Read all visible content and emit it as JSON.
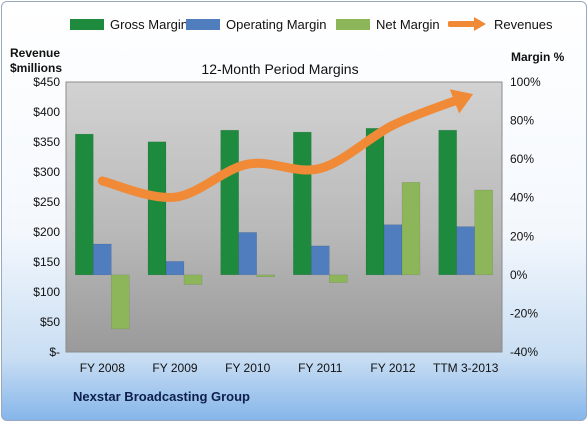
{
  "chart_data": {
    "type": "bar",
    "title": "12-Month Period Margins",
    "categories": [
      "FY 2008",
      "FY 2009",
      "FY 2010",
      "FY 2011",
      "FY 2012",
      "TTM 3-2013"
    ],
    "series": [
      {
        "name": "Gross Margin",
        "axis": "right",
        "values": [
          73,
          69,
          75,
          74,
          76,
          75
        ],
        "color": "#1e8a3e"
      },
      {
        "name": "Operating Margin",
        "axis": "right",
        "values": [
          16,
          7,
          22,
          15,
          26,
          25
        ],
        "color": "#4f7dbd"
      },
      {
        "name": "Net Margin",
        "axis": "right",
        "values": [
          -28,
          -5,
          -1,
          -4,
          48,
          44
        ],
        "color": "#8db55a"
      },
      {
        "name": "Revenues",
        "type": "line",
        "axis": "left",
        "values": [
          285,
          258,
          313,
          306,
          378,
          425
        ],
        "color": "#f08a37"
      }
    ],
    "left_axis": {
      "label": "Revenue $millions",
      "min": 0,
      "max": 450,
      "ticks": [
        "$-",
        "$50",
        "$100",
        "$150",
        "$200",
        "$250",
        "$300",
        "$350",
        "$400",
        "$450"
      ]
    },
    "right_axis": {
      "label": "Margin %",
      "min": -40,
      "max": 100,
      "ticks": [
        "-40%",
        "-20%",
        "0%",
        "20%",
        "40%",
        "60%",
        "80%",
        "100%"
      ]
    },
    "legend_position": "top",
    "grid": false
  },
  "left_axis_title": [
    "Revenue",
    "$millions"
  ],
  "right_axis_title": "Margin %",
  "company_name": "Nexstar Broadcasting Group"
}
